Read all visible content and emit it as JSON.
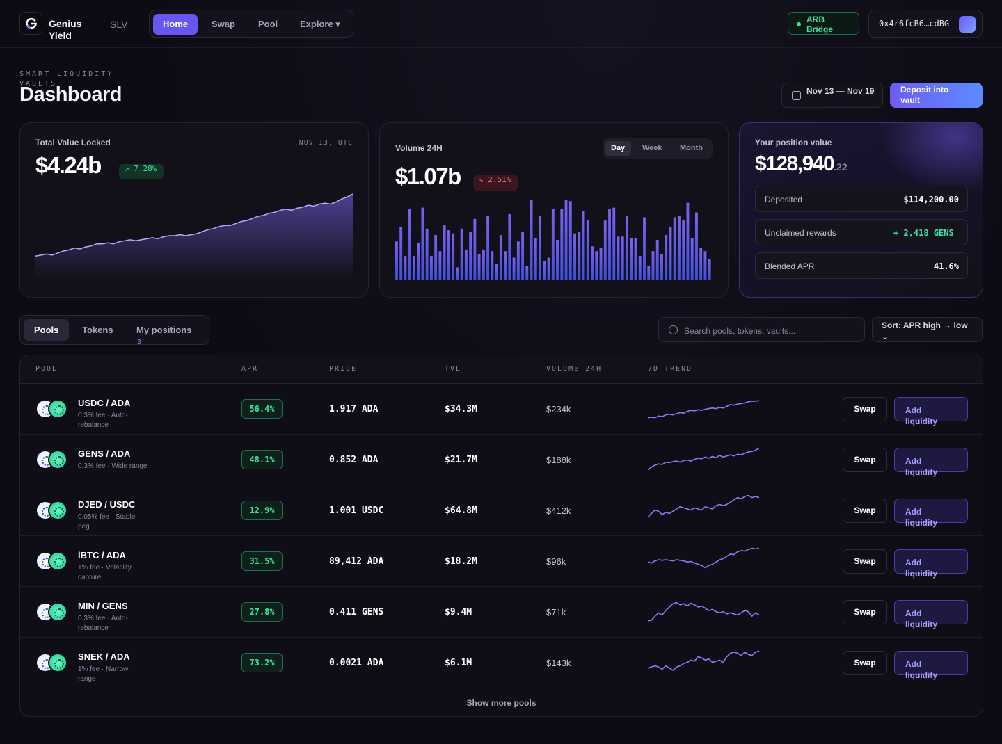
{
  "brand": {
    "name": "Genius Yield",
    "product": "SLV"
  },
  "nav": [
    {
      "label": "Home",
      "active": true
    },
    {
      "label": "Swap",
      "active": false
    },
    {
      "label": "Pool",
      "active": false
    },
    {
      "label": "Explore ▾",
      "active": false
    }
  ],
  "bridge": {
    "label": "ARB Bridge",
    "status_color": "#3ee0a0"
  },
  "wallet": {
    "address": "0x4r6fcB6…cdBG"
  },
  "header": {
    "eyebrow": "SMART LIQUIDITY VAULTS",
    "title": "Dashboard",
    "date_range": "Nov 13 — Nov 19",
    "deposit_label": "Deposit into vault"
  },
  "tvl": {
    "label": "Total Value Locked",
    "date": "NOV 13, UTC",
    "value": "$4.24b",
    "change": "↗ 7.28%",
    "series": [
      10,
      11,
      12,
      11,
      13,
      15,
      16,
      18,
      17,
      19,
      20,
      22,
      22,
      23,
      22,
      24,
      25,
      26,
      25,
      26,
      27,
      28,
      27,
      29,
      30,
      30,
      31,
      30,
      31,
      32,
      34,
      36,
      37,
      39,
      40,
      40,
      42,
      44,
      45,
      47,
      49,
      50,
      52,
      53,
      55,
      56,
      55,
      57,
      58,
      60,
      59,
      61,
      62,
      61,
      63,
      66,
      68,
      71
    ]
  },
  "volume": {
    "label": "Volume 24H",
    "value": "$1.07b",
    "change": "↘ 2.51%",
    "periods": [
      {
        "label": "Day",
        "active": true
      },
      {
        "label": "Week",
        "active": false
      },
      {
        "label": "Month",
        "active": false
      }
    ],
    "bars": [
      48,
      66,
      30,
      88,
      30,
      46,
      90,
      64,
      30,
      56,
      36,
      68,
      62,
      58,
      16,
      64,
      38,
      60,
      76,
      32,
      38,
      80,
      36,
      20,
      56,
      36,
      82,
      28,
      48,
      60,
      18,
      100,
      52,
      80,
      24,
      28,
      88,
      50,
      88,
      100,
      98,
      58,
      60,
      86,
      74,
      42,
      36,
      40,
      74,
      88,
      90,
      54,
      54,
      80,
      52,
      52,
      30,
      78,
      18,
      36,
      50,
      32,
      56,
      66,
      78,
      80,
      74,
      96,
      52,
      84,
      40,
      36,
      26
    ]
  },
  "position": {
    "label": "Your position value",
    "value": "$128,940",
    "value_cents": ".22",
    "rows": [
      {
        "label": "Deposited",
        "value": "$114,200.00"
      },
      {
        "label": "Unclaimed rewards",
        "value": "+ 2,418 GENS"
      },
      {
        "label": "Blended APR",
        "value": "41.6%"
      }
    ]
  },
  "tabs": [
    {
      "label": "Pools",
      "active": true
    },
    {
      "label": "Tokens",
      "active": false
    },
    {
      "label": "My positions",
      "active": false
    }
  ],
  "tab_count": "3",
  "search": {
    "placeholder": "Search pools, tokens, vaults..."
  },
  "sort": {
    "label": "Sort: APR high → low ⌄"
  },
  "table": {
    "headers": [
      "POOL",
      "APR",
      "PRICE",
      "TVL",
      "VOLUME 24H",
      "7D TREND"
    ],
    "swap_label": "Swap",
    "add_label": "Add liquidity",
    "show_more": "Show more pools",
    "rows": [
      {
        "pair": "USDC / ADA",
        "sub": "0.3% fee · Auto-rebalance",
        "apr": "56.4%",
        "price": "1.917 ADA",
        "tvl": "$34.3M",
        "volume": "$234k",
        "trend": [
          4,
          5,
          4,
          7,
          6,
          9,
          10,
          9,
          11,
          13,
          12,
          15,
          17,
          16,
          18,
          17,
          19,
          20,
          21,
          20,
          22,
          21,
          24,
          27,
          26,
          28,
          29,
          30,
          32,
          33,
          33,
          34
        ]
      },
      {
        "pair": "GENS / ADA",
        "sub": "0.3% fee · Wide range",
        "apr": "48.1%",
        "price": "0.852 ADA",
        "tvl": "$21.7M",
        "volume": "$188k",
        "trend": [
          2,
          6,
          10,
          12,
          11,
          15,
          14,
          16,
          17,
          15,
          18,
          19,
          17,
          20,
          22,
          21,
          24,
          22,
          25,
          23,
          27,
          24,
          26,
          28,
          26,
          29,
          28,
          31,
          33,
          34,
          36,
          40
        ]
      },
      {
        "pair": "DJED / USDC",
        "sub": "0.05% fee · Stable peg",
        "apr": "12.9%",
        "price": "1.001 USDC",
        "tvl": "$64.8M",
        "volume": "$412k",
        "trend": [
          8,
          14,
          20,
          18,
          12,
          16,
          14,
          18,
          22,
          26,
          24,
          22,
          20,
          24,
          22,
          20,
          26,
          24,
          22,
          28,
          30,
          28,
          30,
          34,
          38,
          42,
          40,
          44,
          46,
          42,
          44,
          42
        ]
      },
      {
        "pair": "iBTC / ADA",
        "sub": "1% fee · Volatility capture",
        "apr": "31.5%",
        "price": "89,412 ADA",
        "tvl": "$18.2M",
        "volume": "$96k",
        "trend": [
          18,
          16,
          20,
          22,
          21,
          22,
          21,
          20,
          22,
          21,
          20,
          18,
          19,
          16,
          14,
          12,
          8,
          12,
          14,
          18,
          22,
          24,
          28,
          32,
          31,
          36,
          38,
          37,
          40,
          42,
          41,
          42
        ]
      },
      {
        "pair": "MIN / GENS",
        "sub": "0.3% fee · Auto-rebalance",
        "apr": "27.8%",
        "price": "0.411 GENS",
        "tvl": "$9.4M",
        "volume": "$71k",
        "trend": [
          4,
          5,
          12,
          18,
          14,
          22,
          28,
          34,
          36,
          32,
          34,
          30,
          35,
          32,
          28,
          30,
          26,
          22,
          24,
          20,
          18,
          20,
          16,
          18,
          16,
          14,
          18,
          22,
          20,
          12,
          18,
          14
        ]
      },
      {
        "pair": "SNEK / ADA",
        "sub": "1% fee · Narrow range",
        "apr": "73.2%",
        "price": "0.0021 ADA",
        "tvl": "$6.1M",
        "volume": "$143k",
        "trend": [
          10,
          12,
          14,
          12,
          8,
          14,
          10,
          6,
          12,
          14,
          18,
          20,
          24,
          22,
          30,
          28,
          24,
          26,
          20,
          22,
          24,
          20,
          30,
          36,
          38,
          36,
          32,
          38,
          34,
          32,
          38,
          40
        ]
      }
    ]
  },
  "colors": {
    "accent": "#6757f0",
    "positive": "#3ee0a0",
    "negative": "#ff6b7e",
    "trend": "#8b7cf6"
  }
}
